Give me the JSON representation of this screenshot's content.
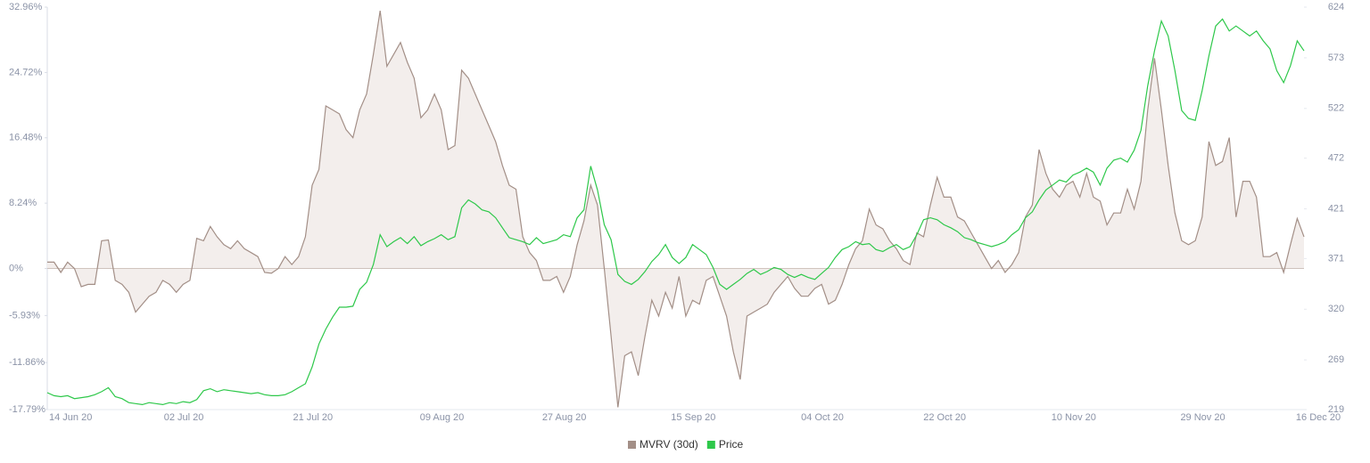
{
  "chart_data": {
    "type": "line",
    "categories": [
      "14 Jun 20",
      null,
      null,
      null,
      null,
      null,
      null,
      null,
      null,
      null,
      null,
      null,
      null,
      null,
      null,
      null,
      null,
      null,
      "02 Jul 20",
      null,
      null,
      null,
      null,
      null,
      null,
      null,
      null,
      null,
      null,
      null,
      null,
      null,
      null,
      null,
      null,
      null,
      null,
      "21 Jul 20",
      null,
      null,
      null,
      null,
      null,
      null,
      null,
      null,
      null,
      null,
      null,
      null,
      null,
      null,
      null,
      null,
      null,
      null,
      "09 Aug 20",
      null,
      null,
      null,
      null,
      null,
      null,
      null,
      null,
      null,
      null,
      null,
      null,
      null,
      null,
      null,
      null,
      null,
      "27 Aug 20",
      null,
      null,
      null,
      null,
      null,
      null,
      null,
      null,
      null,
      null,
      null,
      null,
      null,
      null,
      null,
      null,
      null,
      null,
      "15 Sep 20",
      null,
      null,
      null,
      null,
      null,
      null,
      null,
      null,
      null,
      null,
      null,
      null,
      null,
      null,
      null,
      null,
      null,
      null,
      "04 Oct 20",
      null,
      null,
      null,
      null,
      null,
      null,
      null,
      null,
      null,
      null,
      null,
      null,
      null,
      null,
      null,
      null,
      null,
      "22 Oct 20",
      null,
      null,
      null,
      null,
      null,
      null,
      null,
      null,
      null,
      null,
      null,
      null,
      null,
      null,
      null,
      null,
      null,
      null,
      "10 Nov 20",
      null,
      null,
      null,
      null,
      null,
      null,
      null,
      null,
      null,
      null,
      null,
      null,
      null,
      null,
      null,
      null,
      null,
      null,
      "29 Nov 20",
      null,
      null,
      null,
      null,
      null,
      null,
      null,
      null,
      null,
      null,
      null,
      null,
      null,
      null,
      null,
      null,
      "16 Dec 20"
    ],
    "series": [
      {
        "name": "MVRV (30d)",
        "color": "#a38f87",
        "fill": "#f3eeec",
        "axis": "y",
        "values": [
          0.8,
          0.8,
          -0.5,
          0.8,
          0,
          -2.3,
          -2,
          -2,
          3.5,
          3.6,
          -1.5,
          -2,
          -3,
          -5.5,
          -4.5,
          -3.5,
          -3,
          -1.5,
          -2,
          -3,
          -2,
          -1.5,
          3.8,
          3.5,
          5.3,
          4,
          3,
          2.5,
          3.5,
          2.5,
          2,
          1.5,
          -0.5,
          -0.6,
          0,
          1.5,
          0.5,
          1.5,
          4,
          10.5,
          12.5,
          20.5,
          20,
          19.5,
          17.5,
          16.5,
          20,
          22,
          27,
          32.5,
          25.5,
          27,
          28.5,
          26,
          24,
          19,
          20,
          22,
          20,
          15,
          15.5,
          25,
          24,
          22,
          20,
          18,
          16,
          13,
          10.5,
          10,
          4,
          2,
          1,
          -1.5,
          -1.5,
          -1,
          -3,
          -1,
          3,
          6,
          10.5,
          8,
          0,
          -8.5,
          -17.5,
          -11,
          -10.5,
          -13.5,
          -8.5,
          -4,
          -6,
          -3,
          -5,
          -1,
          -6,
          -4,
          -4.5,
          -1.5,
          -1,
          -3.5,
          -6,
          -10.5,
          -14,
          -6,
          -5.5,
          -5,
          -4.5,
          -3,
          -2,
          -1,
          -2.5,
          -3.5,
          -3.5,
          -2.5,
          -2,
          -4.5,
          -4,
          -2,
          0.5,
          2.5,
          3.5,
          7.5,
          5.5,
          5,
          3.5,
          2.5,
          1,
          0.5,
          4.5,
          4,
          8,
          11.5,
          9,
          9,
          6.5,
          6,
          4.5,
          3,
          1.5,
          0,
          1,
          -0.5,
          0.5,
          2,
          6.5,
          8,
          15,
          12,
          10,
          9,
          10.5,
          11,
          9,
          12,
          9,
          8.5,
          5.5,
          7,
          7,
          10,
          7.5,
          11,
          20,
          26.5,
          20,
          13,
          7,
          3.5,
          3,
          3.5,
          6.5,
          16,
          13,
          13.5,
          16.5,
          6.5,
          11,
          11,
          9,
          1.5,
          1.5,
          2,
          -0.5,
          3,
          6.3,
          4
        ]
      },
      {
        "name": "Price",
        "color": "#2ec84a",
        "axis": "y2",
        "values": [
          236,
          233,
          232,
          233,
          230,
          231,
          232,
          234,
          237,
          241,
          232,
          230,
          226,
          225,
          224,
          226,
          225,
          224,
          226,
          225,
          227,
          226,
          229,
          238,
          240,
          237,
          239,
          238,
          237,
          236,
          235,
          236,
          234,
          233,
          233,
          234,
          237,
          241,
          245,
          262,
          285,
          300,
          312,
          322,
          322,
          323,
          340,
          347,
          365,
          395,
          383,
          388,
          392,
          386,
          393,
          384,
          388,
          391,
          395,
          390,
          393,
          422,
          430,
          426,
          420,
          418,
          412,
          402,
          392,
          390,
          388,
          385,
          392,
          386,
          388,
          390,
          395,
          393,
          412,
          420,
          464,
          440,
          405,
          390,
          355,
          348,
          345,
          350,
          358,
          368,
          375,
          385,
          372,
          366,
          372,
          385,
          380,
          375,
          362,
          345,
          340,
          345,
          350,
          356,
          360,
          355,
          358,
          362,
          360,
          355,
          352,
          355,
          352,
          350,
          356,
          362,
          372,
          380,
          383,
          388,
          385,
          386,
          380,
          378,
          382,
          385,
          380,
          383,
          395,
          410,
          412,
          410,
          405,
          402,
          398,
          392,
          390,
          387,
          385,
          383,
          385,
          388,
          395,
          400,
          412,
          418,
          430,
          440,
          445,
          450,
          448,
          455,
          458,
          462,
          458,
          445,
          462,
          470,
          472,
          468,
          480,
          500,
          545,
          580,
          610,
          595,
          560,
          520,
          512,
          510,
          540,
          575,
          605,
          612,
          600,
          605,
          600,
          595,
          600,
          590,
          582,
          560,
          548,
          565,
          590,
          580
        ]
      }
    ],
    "ylim": [
      -17.79,
      32.96
    ],
    "yticks": [
      {
        "value": 32.96,
        "label": "32.96%"
      },
      {
        "value": 24.72,
        "label": "24.72%"
      },
      {
        "value": 16.48,
        "label": "16.48%"
      },
      {
        "value": 8.24,
        "label": "8.24%"
      },
      {
        "value": 0,
        "label": "0%"
      },
      {
        "value": -5.93,
        "label": "-5.93%"
      },
      {
        "value": -11.86,
        "label": "-11.86%"
      },
      {
        "value": -17.79,
        "label": "-17.79%"
      }
    ],
    "y2lim": [
      219,
      624
    ],
    "y2ticks": [
      624,
      573,
      522,
      472,
      421,
      371,
      320,
      269,
      219
    ],
    "legend": "bottom"
  }
}
